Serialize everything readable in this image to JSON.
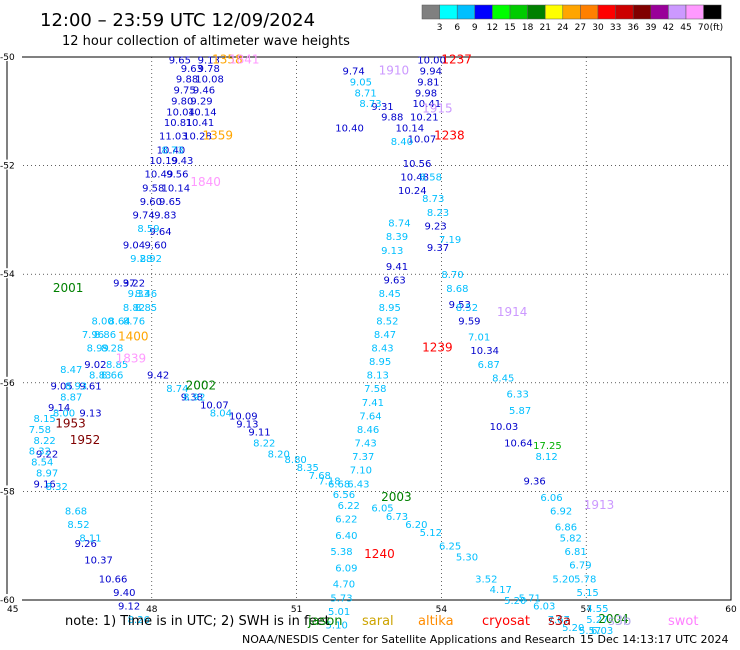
{
  "chart_data": {
    "type": "scatter",
    "title": "12:00 – 23:59 UTC 12/09/2024",
    "subtitle": "12 hour collection of altimeter wave heights",
    "xlim": [
      45,
      60
    ],
    "ylim": [
      -60,
      -50
    ],
    "x_ticks": [
      "45",
      "48",
      "51",
      "54",
      "57",
      "60"
    ],
    "y_ticks": [
      "-50",
      "-52",
      "-54",
      "-56",
      "-58",
      "-60"
    ],
    "grid": true,
    "scale": {
      "unit": "(ft)",
      "labels": [
        "3",
        "6",
        "9",
        "12",
        "15",
        "18",
        "21",
        "24",
        "27",
        "30",
        "33",
        "36",
        "39",
        "42",
        "45",
        "70"
      ],
      "colors": [
        "#808080",
        "#00ffff",
        "#00bfff",
        "#0000ff",
        "#00ff00",
        "#00cc00",
        "#008000",
        "#ffff00",
        "#ffa500",
        "#ff8000",
        "#ff0000",
        "#cc0000",
        "#800000",
        "#990099",
        "#cc99ff",
        "#ff99ff",
        "#000000"
      ]
    },
    "mission_colors": {
      "jason": "#008000",
      "saral": "#cca300",
      "altika": "#ff8c00",
      "cryosat": "#ff0000",
      "s3a": "#b30000",
      "s3b": "#b3a7e8",
      "swot": "#ff80ff"
    },
    "tracks": [
      {
        "color": "#0000cc",
        "points": [
          [
            48.35,
            -50.05,
            "9.65"
          ],
          [
            48.95,
            -50.05,
            "9.13"
          ],
          [
            48.6,
            -50.2,
            "9.63"
          ],
          [
            48.95,
            -50.2,
            "9.78"
          ],
          [
            48.5,
            -50.4,
            "9.88"
          ],
          [
            48.9,
            -50.4,
            "10.08"
          ],
          [
            48.45,
            -50.6,
            "9.75"
          ],
          [
            48.85,
            -50.6,
            "9.46"
          ],
          [
            48.4,
            -50.8,
            "9.80"
          ],
          [
            48.8,
            -50.8,
            "9.29"
          ],
          [
            48.3,
            -51.0,
            "10.04"
          ],
          [
            48.75,
            -51.0,
            "10.14"
          ],
          [
            48.25,
            -51.2,
            "10.81"
          ],
          [
            48.7,
            -51.2,
            "10.41"
          ],
          [
            48.15,
            -51.45,
            "11.03"
          ],
          [
            48.65,
            -51.45,
            "10.28"
          ],
          [
            48.1,
            -51.7,
            "10.40"
          ],
          [
            47.95,
            -51.9,
            "10.19"
          ],
          [
            48.4,
            -51.9,
            "9.43"
          ],
          [
            47.85,
            -52.15,
            "10.49"
          ],
          [
            48.3,
            -52.15,
            "9.56"
          ],
          [
            47.8,
            -52.4,
            "9.58"
          ],
          [
            48.2,
            -52.4,
            "10.14"
          ],
          [
            47.75,
            -52.65,
            "9.60"
          ],
          [
            48.15,
            -52.65,
            "9.65"
          ],
          [
            47.6,
            -52.9,
            "9.74"
          ],
          [
            48.05,
            -52.9,
            "9.83"
          ],
          [
            47.95,
            -53.2,
            "9.64"
          ],
          [
            47.4,
            -53.45,
            "9.04"
          ],
          [
            47.85,
            -53.45,
            "9.60"
          ],
          [
            47.2,
            -54.15,
            "9.37"
          ],
          [
            47.4,
            -54.15,
            "9.22"
          ],
          [
            46.6,
            -55.65,
            "9.02"
          ],
          [
            47.9,
            -55.85,
            "9.42"
          ],
          [
            46.5,
            -56.05,
            "9.61"
          ],
          [
            45.9,
            -56.05,
            "9.05"
          ],
          [
            45.85,
            -56.45,
            "9.14"
          ],
          [
            46.5,
            -56.55,
            "9.13"
          ],
          [
            48.6,
            -56.25,
            "9.38"
          ],
          [
            49.0,
            -56.4,
            "10.07"
          ],
          [
            49.6,
            -56.6,
            "10.09"
          ],
          [
            49.75,
            -56.75,
            "9.13"
          ],
          [
            50.0,
            -56.9,
            "9.11"
          ],
          [
            45.6,
            -57.3,
            "9.22"
          ],
          [
            45.55,
            -57.85,
            "9.16"
          ],
          [
            46.4,
            -58.95,
            "9.26"
          ],
          [
            46.6,
            -59.25,
            "10.37"
          ],
          [
            46.9,
            -59.6,
            "10.66"
          ],
          [
            47.2,
            -59.85,
            "9.40"
          ],
          [
            47.3,
            -60.1,
            "9.12"
          ],
          [
            51.95,
            -50.25,
            "9.74"
          ],
          [
            52.55,
            -50.9,
            "9.31"
          ],
          [
            52.75,
            -51.1,
            "9.88"
          ],
          [
            53.05,
            -51.3,
            "10.14"
          ],
          [
            53.5,
            -50.05,
            "10.00"
          ],
          [
            53.55,
            -50.25,
            "9.94"
          ],
          [
            53.5,
            -50.45,
            "9.81"
          ],
          [
            53.45,
            -50.65,
            "9.98"
          ],
          [
            53.4,
            -50.85,
            "10.41"
          ],
          [
            53.35,
            -51.1,
            "10.21"
          ],
          [
            53.3,
            -51.5,
            "10.07"
          ],
          [
            53.2,
            -51.95,
            "10.56"
          ],
          [
            53.15,
            -52.2,
            "10.48"
          ],
          [
            53.1,
            -52.45,
            "10.24"
          ],
          [
            53.65,
            -53.1,
            "9.23"
          ],
          [
            53.7,
            -53.5,
            "9.37"
          ],
          [
            52.85,
            -53.85,
            "9.41"
          ],
          [
            52.8,
            -54.1,
            "9.63"
          ],
          [
            54.15,
            -54.55,
            "9.53"
          ],
          [
            54.35,
            -54.85,
            "9.59"
          ],
          [
            54.6,
            -55.4,
            "10.34"
          ],
          [
            55.0,
            -56.8,
            "10.03"
          ],
          [
            55.3,
            -57.1,
            "10.64"
          ],
          [
            55.7,
            -57.8,
            "9.36"
          ],
          [
            51.8,
            -51.3,
            "10.40"
          ]
        ]
      },
      {
        "color": "#00bfff",
        "points": [
          [
            48.2,
            -51.7,
            "8.73"
          ],
          [
            47.7,
            -53.15,
            "8.59"
          ],
          [
            47.55,
            -53.7,
            "9.28"
          ],
          [
            47.75,
            -53.7,
            "8.92"
          ],
          [
            47.5,
            -54.35,
            "9.33"
          ],
          [
            47.65,
            -54.35,
            "8.46"
          ],
          [
            47.4,
            -54.6,
            "8.82"
          ],
          [
            47.65,
            -54.6,
            "8.85"
          ],
          [
            46.75,
            -54.85,
            "8.00"
          ],
          [
            47.1,
            -54.85,
            "8.64"
          ],
          [
            47.4,
            -54.85,
            "8.76"
          ],
          [
            46.55,
            -55.1,
            "7.96"
          ],
          [
            46.8,
            -55.1,
            "8.86"
          ],
          [
            46.65,
            -55.35,
            "8.99"
          ],
          [
            46.95,
            -55.35,
            "8.28"
          ],
          [
            47.05,
            -55.65,
            "8.85"
          ],
          [
            46.7,
            -55.85,
            "8.83"
          ],
          [
            46.95,
            -55.85,
            "8.66"
          ],
          [
            46.1,
            -55.75,
            "8.47"
          ],
          [
            46.2,
            -56.05,
            "8.93"
          ],
          [
            46.1,
            -56.25,
            "8.87"
          ],
          [
            45.95,
            -56.55,
            "8.00"
          ],
          [
            45.55,
            -56.65,
            "8.15"
          ],
          [
            45.45,
            -56.85,
            "7.58"
          ],
          [
            45.55,
            -57.05,
            "8.22"
          ],
          [
            45.45,
            -57.25,
            "8.32"
          ],
          [
            45.5,
            -57.45,
            "8.54"
          ],
          [
            45.6,
            -57.65,
            "8.97"
          ],
          [
            45.8,
            -57.9,
            "8.32"
          ],
          [
            46.2,
            -58.35,
            "8.68"
          ],
          [
            46.25,
            -58.6,
            "8.52"
          ],
          [
            46.5,
            -58.85,
            "8.11"
          ],
          [
            48.3,
            -56.1,
            "8.74"
          ],
          [
            48.65,
            -56.25,
            "8.92"
          ],
          [
            49.2,
            -56.55,
            "8.04"
          ],
          [
            50.1,
            -57.1,
            "8.22"
          ],
          [
            50.4,
            -57.3,
            "8.20"
          ],
          [
            50.75,
            -57.4,
            "8.80"
          ],
          [
            51.0,
            -57.55,
            "8.35"
          ],
          [
            51.25,
            -57.7,
            "7.68"
          ],
          [
            51.45,
            -57.8,
            "7.18"
          ],
          [
            51.65,
            -57.85,
            "6.68"
          ],
          [
            51.75,
            -58.05,
            "6.56"
          ],
          [
            51.85,
            -58.25,
            "6.22"
          ],
          [
            51.8,
            -58.5,
            "6.22"
          ],
          [
            51.8,
            -58.8,
            "6.40"
          ],
          [
            51.7,
            -59.1,
            "5.38"
          ],
          [
            51.8,
            -59.4,
            "6.09"
          ],
          [
            51.75,
            -59.7,
            "4.70"
          ],
          [
            51.7,
            -59.95,
            "5.73"
          ],
          [
            51.65,
            -60.2,
            "5.01"
          ],
          [
            51.6,
            -60.45,
            "5.10"
          ],
          [
            47.5,
            -60.35,
            "8.26"
          ],
          [
            52.1,
            -50.45,
            "9.05"
          ],
          [
            52.2,
            -50.65,
            "8.71"
          ],
          [
            52.3,
            -50.85,
            "8.73"
          ],
          [
            52.95,
            -51.55,
            "8.40"
          ],
          [
            52.9,
            -53.05,
            "8.74"
          ],
          [
            52.85,
            -53.3,
            "8.39"
          ],
          [
            52.75,
            -53.55,
            "9.13"
          ],
          [
            52.7,
            -54.35,
            "8.45"
          ],
          [
            52.7,
            -54.6,
            "8.95"
          ],
          [
            52.65,
            -54.85,
            "8.52"
          ],
          [
            52.6,
            -55.1,
            "8.47"
          ],
          [
            52.55,
            -55.35,
            "8.43"
          ],
          [
            52.5,
            -55.6,
            "8.95"
          ],
          [
            52.45,
            -55.85,
            "8.13"
          ],
          [
            52.4,
            -56.1,
            "7.58"
          ],
          [
            52.35,
            -56.35,
            "7.41"
          ],
          [
            52.3,
            -56.6,
            "7.64"
          ],
          [
            52.25,
            -56.85,
            "8.46"
          ],
          [
            52.2,
            -57.1,
            "7.43"
          ],
          [
            52.15,
            -57.35,
            "7.37"
          ],
          [
            52.1,
            -57.6,
            "7.10"
          ],
          [
            52.05,
            -57.85,
            "6.43"
          ],
          [
            52.55,
            -58.3,
            "6.05"
          ],
          [
            52.85,
            -58.45,
            "6.73"
          ],
          [
            53.25,
            -58.6,
            "6.20"
          ],
          [
            53.55,
            -58.75,
            "5.12"
          ],
          [
            53.95,
            -59.0,
            "6.25"
          ],
          [
            54.3,
            -59.2,
            "5.30"
          ],
          [
            53.55,
            -52.2,
            "8.58"
          ],
          [
            53.6,
            -52.6,
            "8.73"
          ],
          [
            53.7,
            -52.85,
            "8.23"
          ],
          [
            53.95,
            -53.35,
            "7.19"
          ],
          [
            54.0,
            -54.0,
            "8.70"
          ],
          [
            54.1,
            -54.25,
            "8.68"
          ],
          [
            54.3,
            -54.6,
            "8.52"
          ],
          [
            54.55,
            -55.15,
            "7.01"
          ],
          [
            54.75,
            -55.65,
            "6.87"
          ],
          [
            55.05,
            -55.9,
            "8.45"
          ],
          [
            55.35,
            -56.2,
            "6.33"
          ],
          [
            55.4,
            -56.5,
            "5.87"
          ],
          [
            55.95,
            -57.35,
            "8.12"
          ],
          [
            56.05,
            -58.1,
            "6.06"
          ],
          [
            56.25,
            -58.35,
            "6.92"
          ],
          [
            56.35,
            -58.65,
            "6.86"
          ],
          [
            56.45,
            -58.85,
            "5.82"
          ],
          [
            56.55,
            -59.1,
            "6.81"
          ],
          [
            56.65,
            -59.35,
            "6.79"
          ],
          [
            56.75,
            -59.6,
            "5.78"
          ],
          [
            56.8,
            -59.85,
            "5.15"
          ],
          [
            57.0,
            -60.15,
            "4.55"
          ],
          [
            57.0,
            -60.35,
            "5.27"
          ],
          [
            56.3,
            -59.6,
            "5.20"
          ],
          [
            55.6,
            -59.95,
            "5.71"
          ],
          [
            55.9,
            -60.1,
            "6.03"
          ],
          [
            56.2,
            -60.35,
            "7.67"
          ],
          [
            56.5,
            -60.5,
            "5.20"
          ],
          [
            56.85,
            -60.55,
            "5.57"
          ],
          [
            57.1,
            -60.55,
            "6.03"
          ],
          [
            54.7,
            -59.6,
            "3.52"
          ],
          [
            55.0,
            -59.8,
            "4.17"
          ],
          [
            55.3,
            -60.0,
            "5.20"
          ]
        ]
      },
      {
        "color": "#00b000",
        "points": [
          [
            55.9,
            -57.15,
            "17.25"
          ]
        ]
      }
    ],
    "tags": [
      {
        "x": 49.25,
        "y": -50.05,
        "label": "1358",
        "color": "#ffa500"
      },
      {
        "x": 49.6,
        "y": -50.05,
        "label": "1841",
        "color": "#ff99ff"
      },
      {
        "x": 49.05,
        "y": -51.45,
        "label": "1359",
        "color": "#ffa500"
      },
      {
        "x": 48.8,
        "y": -52.3,
        "label": "1840",
        "color": "#ff99ff"
      },
      {
        "x": 45.95,
        "y": -54.25,
        "label": "2001",
        "color": "#008000"
      },
      {
        "x": 47.3,
        "y": -55.15,
        "label": "1400",
        "color": "#ffa500"
      },
      {
        "x": 47.25,
        "y": -55.55,
        "label": "1839",
        "color": "#ff99ff"
      },
      {
        "x": 48.7,
        "y": -56.05,
        "label": "2002",
        "color": "#008000"
      },
      {
        "x": 46.0,
        "y": -56.75,
        "label": "1953",
        "color": "#800000"
      },
      {
        "x": 46.3,
        "y": -57.05,
        "label": "1952",
        "color": "#800000"
      },
      {
        "x": 52.7,
        "y": -50.25,
        "label": "1910",
        "color": "#cc99ff"
      },
      {
        "x": 54.0,
        "y": -50.05,
        "label": "1237",
        "color": "#ff0000"
      },
      {
        "x": 53.6,
        "y": -50.95,
        "label": "1915",
        "color": "#cc99ff"
      },
      {
        "x": 53.85,
        "y": -51.45,
        "label": "1238",
        "color": "#ff0000"
      },
      {
        "x": 53.6,
        "y": -55.35,
        "label": "1239",
        "color": "#ff0000"
      },
      {
        "x": 55.15,
        "y": -54.7,
        "label": "1914",
        "color": "#cc99ff"
      },
      {
        "x": 52.75,
        "y": -58.1,
        "label": "2003",
        "color": "#008000"
      },
      {
        "x": 52.4,
        "y": -59.15,
        "label": "1240",
        "color": "#ff0000"
      },
      {
        "x": 56.95,
        "y": -58.25,
        "label": "1913",
        "color": "#cc99ff"
      },
      {
        "x": 57.25,
        "y": -60.35,
        "label": "2004",
        "color": "#008000"
      }
    ]
  },
  "note": {
    "prefix": "note:  1) Time is in UTC;  2) SWH is in feet",
    "missions": [
      "jason",
      "saral",
      "altika",
      "cryosat",
      "s3a",
      "s3b",
      "swot"
    ]
  },
  "footer": {
    "center": "NOAA/NESDIS Center for Satellite Applications and Research",
    "timestamp": "15 Dec 14:13:17 UTC 2024"
  }
}
